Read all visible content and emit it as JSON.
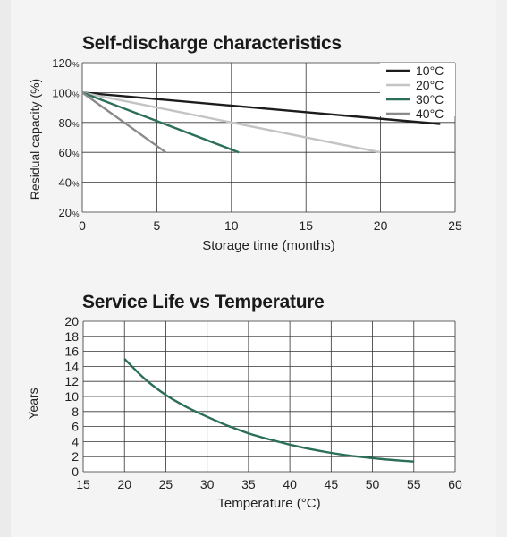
{
  "chart_data": [
    {
      "type": "line",
      "title": "Self-discharge characteristics",
      "xlabel": "Storage time (months)",
      "ylabel": "Residual capacity (%)",
      "xlim": [
        0,
        25
      ],
      "ylim": [
        20,
        120
      ],
      "x_ticks": [
        0,
        5,
        10,
        15,
        20,
        25
      ],
      "y_ticks": [
        {
          "value": 20,
          "num": "20",
          "unit": "%"
        },
        {
          "value": 40,
          "num": "40",
          "unit": "%"
        },
        {
          "value": 60,
          "num": "60",
          "unit": "%"
        },
        {
          "value": 80,
          "num": "80",
          "unit": "%"
        },
        {
          "value": 100,
          "num": "100",
          "unit": "%"
        },
        {
          "value": 120,
          "num": "120",
          "unit": "%"
        }
      ],
      "grid": true,
      "legend_position": "top-right",
      "series": [
        {
          "name": "10°C",
          "color": "#1c1c1c",
          "points": [
            [
              0,
              100
            ],
            [
              24,
              79
            ]
          ]
        },
        {
          "name": "20°C",
          "color": "#c4c4c4",
          "points": [
            [
              0,
              100
            ],
            [
              20,
              60
            ]
          ]
        },
        {
          "name": "30°C",
          "color": "#2b6e5a",
          "points": [
            [
              0,
              100
            ],
            [
              10.5,
              60
            ]
          ]
        },
        {
          "name": "40°C",
          "color": "#8a8a8a",
          "points": [
            [
              0,
              100
            ],
            [
              5.6,
              60
            ]
          ]
        }
      ]
    },
    {
      "type": "line",
      "title": "Service Life vs Temperature",
      "xlabel": "Temperature (°C)",
      "ylabel": "Years",
      "xlim": [
        15,
        60
      ],
      "ylim": [
        0,
        20
      ],
      "x_ticks": [
        15,
        20,
        25,
        30,
        35,
        40,
        45,
        50,
        55,
        60
      ],
      "y_ticks": [
        0,
        2,
        4,
        6,
        8,
        10,
        12,
        14,
        16,
        18,
        20
      ],
      "grid": true,
      "series": [
        {
          "color": "#2b6e5a",
          "points": [
            [
              20,
              15
            ],
            [
              22.5,
              12.3
            ],
            [
              25,
              10.2
            ],
            [
              27.5,
              8.6
            ],
            [
              30,
              7.3
            ],
            [
              32.5,
              6.1
            ],
            [
              35,
              5.1
            ],
            [
              37.5,
              4.3
            ],
            [
              40,
              3.6
            ],
            [
              42.5,
              3.0
            ],
            [
              45,
              2.5
            ],
            [
              47.5,
              2.1
            ],
            [
              50,
              1.8
            ],
            [
              52.5,
              1.55
            ],
            [
              55,
              1.35
            ]
          ]
        }
      ]
    }
  ]
}
